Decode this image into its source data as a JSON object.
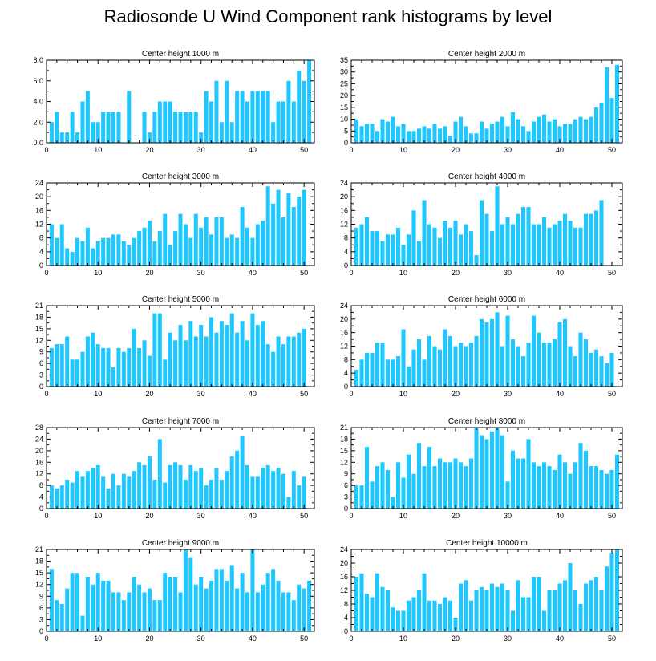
{
  "title": "Radiosonde U Wind Component rank histograms by level",
  "colors": {
    "bar": "#1ec8ff",
    "axis": "#000000"
  },
  "chart_data": [
    {
      "type": "bar",
      "title": "Center height 1000 m",
      "xlim": [
        0,
        52
      ],
      "xticks": [
        0,
        10,
        20,
        30,
        40,
        50
      ],
      "ylim": [
        0,
        8
      ],
      "yticks": [
        "0.0",
        "2.0",
        "4.0",
        "6.0",
        "8.0"
      ],
      "ytick_values": [
        0,
        2,
        4,
        6,
        8
      ],
      "values": [
        2,
        3,
        1,
        1,
        3,
        1,
        4,
        5,
        2,
        2,
        3,
        3,
        3,
        3,
        0,
        5,
        0,
        0,
        3,
        1,
        3,
        4,
        4,
        4,
        3,
        3,
        3,
        3,
        3,
        1,
        5,
        4,
        6,
        2,
        6,
        2,
        5,
        5,
        4,
        5,
        5,
        5,
        5,
        2,
        4,
        4,
        6,
        4,
        7,
        6,
        8
      ]
    },
    {
      "type": "bar",
      "title": "Center height 2000 m",
      "xlim": [
        0,
        52
      ],
      "xticks": [
        0,
        10,
        20,
        30,
        40,
        50
      ],
      "ylim": [
        0,
        35
      ],
      "yticks": [
        "0",
        "5",
        "10",
        "15",
        "20",
        "25",
        "30",
        "35"
      ],
      "ytick_values": [
        0,
        5,
        10,
        15,
        20,
        25,
        30,
        35
      ],
      "values": [
        10,
        7,
        8,
        8,
        5,
        10,
        9,
        11,
        7,
        8,
        5,
        5,
        6,
        7,
        6,
        8,
        6,
        7,
        3,
        9,
        11,
        7,
        4,
        4,
        9,
        6,
        8,
        9,
        11,
        7,
        13,
        10,
        7,
        5,
        9,
        11,
        12,
        9,
        10,
        7,
        8,
        8,
        10,
        11,
        10,
        11,
        15,
        17,
        32,
        19,
        33
      ]
    },
    {
      "type": "bar",
      "title": "Center height 3000 m",
      "xlim": [
        0,
        52
      ],
      "xticks": [
        0,
        10,
        20,
        30,
        40,
        50
      ],
      "ylim": [
        0,
        24
      ],
      "yticks": [
        "0",
        "4",
        "8",
        "12",
        "16",
        "20",
        "24"
      ],
      "ytick_values": [
        0,
        4,
        8,
        12,
        16,
        20,
        24
      ],
      "values": [
        12,
        8,
        12,
        5,
        4,
        8,
        7,
        11,
        5,
        7,
        8,
        8,
        9,
        9,
        7,
        6,
        8,
        10,
        11,
        13,
        7,
        10,
        15,
        6,
        10,
        15,
        12,
        8,
        15,
        11,
        14,
        9,
        14,
        14,
        8,
        9,
        8,
        17,
        11,
        8,
        12,
        13,
        23,
        18,
        22,
        14,
        21,
        17,
        20,
        22,
        0
      ]
    },
    {
      "type": "bar",
      "title": "Center height 4000 m",
      "xlim": [
        0,
        52
      ],
      "xticks": [
        0,
        10,
        20,
        30,
        40,
        50
      ],
      "ylim": [
        0,
        24
      ],
      "yticks": [
        "0",
        "4",
        "8",
        "12",
        "16",
        "20",
        "24"
      ],
      "ytick_values": [
        0,
        4,
        8,
        12,
        16,
        20,
        24
      ],
      "values": [
        11,
        12,
        14,
        10,
        10,
        7,
        9,
        9,
        11,
        6,
        9,
        16,
        7,
        19,
        12,
        11,
        8,
        13,
        11,
        13,
        9,
        12,
        10,
        3,
        19,
        15,
        10,
        23,
        12,
        14,
        12,
        15,
        17,
        17,
        12,
        12,
        14,
        11,
        12,
        13,
        15,
        13,
        11,
        11,
        15,
        15,
        16,
        19,
        0,
        0,
        0
      ]
    },
    {
      "type": "bar",
      "title": "Center height 5000 m",
      "xlim": [
        0,
        52
      ],
      "xticks": [
        0,
        10,
        20,
        30,
        40,
        50
      ],
      "ylim": [
        0,
        21
      ],
      "yticks": [
        "0",
        "3",
        "6",
        "9",
        "12",
        "15",
        "18",
        "21"
      ],
      "ytick_values": [
        0,
        3,
        6,
        9,
        12,
        15,
        18,
        21
      ],
      "values": [
        10,
        11,
        11,
        13,
        7,
        7,
        9,
        13,
        14,
        11,
        10,
        10,
        5,
        10,
        9,
        10,
        15,
        10,
        12,
        8,
        19,
        19,
        7,
        14,
        12,
        16,
        12,
        17,
        13,
        16,
        13,
        18,
        14,
        17,
        16,
        19,
        14,
        17,
        12,
        19,
        16,
        17,
        11,
        9,
        13,
        11,
        13,
        13,
        14,
        15,
        0
      ]
    },
    {
      "type": "bar",
      "title": "Center height 6000 m",
      "xlim": [
        0,
        52
      ],
      "xticks": [
        0,
        10,
        20,
        30,
        40,
        50
      ],
      "ylim": [
        0,
        24
      ],
      "yticks": [
        "0",
        "4",
        "8",
        "12",
        "16",
        "20",
        "24"
      ],
      "ytick_values": [
        0,
        4,
        8,
        12,
        16,
        20,
        24
      ],
      "values": [
        5,
        8,
        10,
        10,
        13,
        13,
        8,
        8,
        9,
        17,
        6,
        11,
        14,
        8,
        15,
        12,
        11,
        17,
        15,
        12,
        13,
        12,
        13,
        15,
        20,
        19,
        20,
        22,
        12,
        21,
        14,
        12,
        9,
        13,
        21,
        16,
        13,
        13,
        14,
        19,
        20,
        12,
        9,
        16,
        14,
        10,
        11,
        9,
        7,
        10,
        0
      ]
    },
    {
      "type": "bar",
      "title": "Center height 7000 m",
      "xlim": [
        0,
        52
      ],
      "xticks": [
        0,
        10,
        20,
        30,
        40,
        50
      ],
      "ylim": [
        0,
        28
      ],
      "yticks": [
        "0",
        "4",
        "8",
        "12",
        "16",
        "20",
        "24",
        "28"
      ],
      "ytick_values": [
        0,
        4,
        8,
        12,
        16,
        20,
        24,
        28
      ],
      "values": [
        8,
        7,
        8,
        10,
        9,
        13,
        11,
        13,
        14,
        15,
        11,
        7,
        12,
        8,
        12,
        11,
        13,
        16,
        15,
        18,
        10,
        24,
        9,
        15,
        16,
        15,
        10,
        15,
        13,
        14,
        8,
        10,
        14,
        10,
        13,
        18,
        20,
        25,
        15,
        11,
        11,
        14,
        15,
        13,
        14,
        12,
        4,
        13,
        8,
        11,
        0
      ]
    },
    {
      "type": "bar",
      "title": "Center height 8000 m",
      "xlim": [
        0,
        52
      ],
      "xticks": [
        0,
        10,
        20,
        30,
        40,
        50
      ],
      "ylim": [
        0,
        21
      ],
      "yticks": [
        "0",
        "3",
        "6",
        "9",
        "12",
        "15",
        "18",
        "21"
      ],
      "ytick_values": [
        0,
        3,
        6,
        9,
        12,
        15,
        18,
        21
      ],
      "values": [
        6,
        6,
        16,
        7,
        11,
        12,
        10,
        3,
        12,
        8,
        14,
        9,
        17,
        11,
        16,
        11,
        13,
        12,
        12,
        13,
        12,
        11,
        13,
        21,
        19,
        18,
        20,
        21,
        19,
        7,
        15,
        13,
        13,
        18,
        12,
        11,
        12,
        11,
        10,
        14,
        12,
        9,
        12,
        17,
        15,
        11,
        11,
        10,
        9,
        10,
        14
      ]
    },
    {
      "type": "bar",
      "title": "Center height 9000 m",
      "xlim": [
        0,
        52
      ],
      "xticks": [
        0,
        10,
        20,
        30,
        40,
        50
      ],
      "ylim": [
        0,
        21
      ],
      "yticks": [
        "0",
        "3",
        "6",
        "9",
        "12",
        "15",
        "18",
        "21"
      ],
      "ytick_values": [
        0,
        3,
        6,
        9,
        12,
        15,
        18,
        21
      ],
      "values": [
        16,
        8,
        7,
        11,
        15,
        15,
        4,
        14,
        12,
        15,
        13,
        13,
        10,
        10,
        8,
        10,
        14,
        12,
        10,
        11,
        8,
        8,
        15,
        14,
        14,
        10,
        21,
        19,
        12,
        14,
        11,
        13,
        16,
        16,
        13,
        17,
        11,
        15,
        10,
        21,
        10,
        12,
        15,
        16,
        13,
        10,
        10,
        8,
        12,
        11,
        13
      ]
    },
    {
      "type": "bar",
      "title": "Center height 10000 m",
      "xlim": [
        0,
        52
      ],
      "xticks": [
        0,
        10,
        20,
        30,
        40,
        50
      ],
      "ylim": [
        0,
        24
      ],
      "yticks": [
        "0",
        "4",
        "8",
        "12",
        "16",
        "20",
        "24"
      ],
      "ytick_values": [
        0,
        4,
        8,
        12,
        16,
        20,
        24
      ],
      "values": [
        16,
        17,
        11,
        10,
        17,
        13,
        12,
        7,
        6,
        6,
        9,
        10,
        12,
        17,
        9,
        9,
        8,
        10,
        9,
        4,
        14,
        15,
        9,
        12,
        13,
        12,
        14,
        13,
        14,
        12,
        6,
        15,
        10,
        10,
        16,
        16,
        6,
        12,
        12,
        14,
        15,
        20,
        12,
        8,
        14,
        15,
        16,
        12,
        19,
        23,
        24
      ]
    }
  ]
}
